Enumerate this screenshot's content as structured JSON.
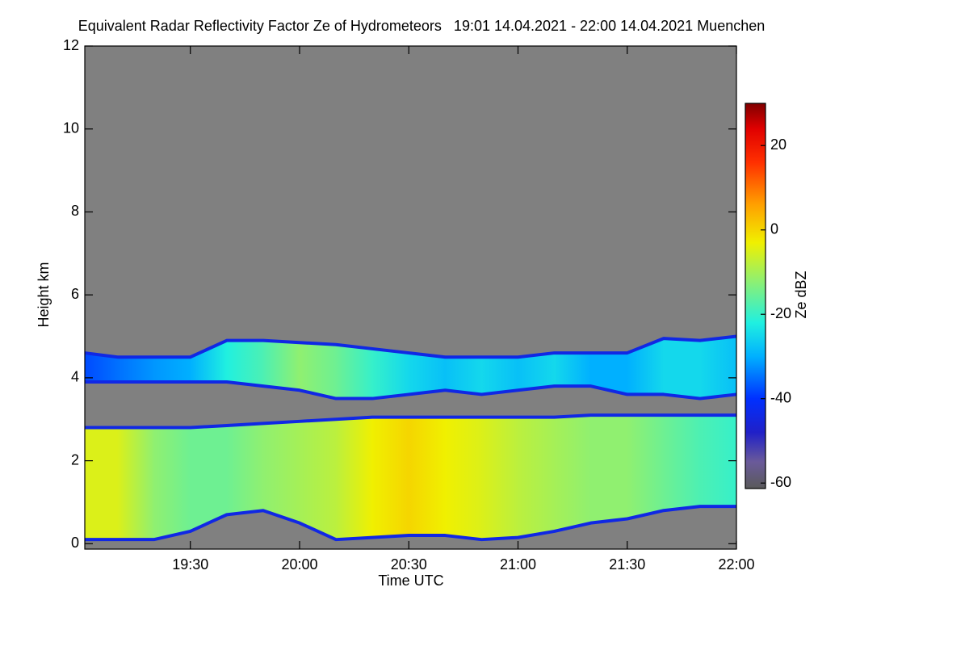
{
  "chart_data": {
    "type": "heatmap",
    "title": "Equivalent Radar Reflectivity Factor Ze of Hydrometeors   19:01 14.04.2021 - 22:00 14.04.2021 Muenchen",
    "xlabel": "Time UTC",
    "ylabel": "Height km",
    "x": [
      "19:01",
      "19:10",
      "19:20",
      "19:30",
      "19:40",
      "19:50",
      "20:00",
      "20:10",
      "20:20",
      "20:30",
      "20:40",
      "20:50",
      "21:00",
      "21:10",
      "21:20",
      "21:30",
      "21:40",
      "21:50",
      "22:00"
    ],
    "xlim": [
      "19:01",
      "22:00"
    ],
    "xticks": [
      "19:30",
      "20:00",
      "20:30",
      "21:00",
      "21:30",
      "22:00"
    ],
    "ylim": [
      -0.13,
      12.0
    ],
    "yticks": [
      0,
      2,
      4,
      6,
      8,
      10,
      12
    ],
    "background": "#808080",
    "layers": [
      {
        "top": [
          4.6,
          4.5,
          4.5,
          4.5,
          4.9,
          4.9,
          4.85,
          4.8,
          4.7,
          4.6,
          4.5,
          4.5,
          4.5,
          4.6,
          4.6,
          4.6,
          4.95,
          4.9,
          5.0
        ],
        "base": [
          3.9,
          3.9,
          3.9,
          3.9,
          3.9,
          3.8,
          3.7,
          3.5,
          3.5,
          3.6,
          3.7,
          3.6,
          3.7,
          3.8,
          3.8,
          3.6,
          3.6,
          3.5,
          3.6
        ],
        "ze": [
          -38,
          -35,
          -32,
          -30,
          -22,
          -18,
          -12,
          -15,
          -20,
          -25,
          -28,
          -25,
          -28,
          -25,
          -30,
          -30,
          -25,
          -25,
          -28
        ]
      },
      {
        "top": [
          2.8,
          2.8,
          2.8,
          2.8,
          2.85,
          2.9,
          2.95,
          3.0,
          3.05,
          3.05,
          3.05,
          3.05,
          3.05,
          3.05,
          3.1,
          3.1,
          3.1,
          3.1,
          3.1
        ],
        "base": [
          0.1,
          0.1,
          0.1,
          0.3,
          0.7,
          0.8,
          0.5,
          0.1,
          0.15,
          0.2,
          0.2,
          0.1,
          0.15,
          0.3,
          0.5,
          0.6,
          0.8,
          0.9,
          0.9
        ],
        "ze": [
          -5,
          -5,
          -12,
          -15,
          -15,
          -12,
          -10,
          -8,
          -3,
          0,
          -3,
          -5,
          -8,
          -10,
          -12,
          -12,
          -15,
          -18,
          -20
        ]
      }
    ],
    "colorbar": {
      "label": "Ze dBZ",
      "zlim": [
        -61.3,
        30
      ],
      "ticks": [
        -60,
        -40,
        -20,
        0,
        20
      ],
      "colorscale": [
        {
          "value": -61.3,
          "color": "#5a5a5a"
        },
        {
          "value": -55,
          "color": "#6a5a9a"
        },
        {
          "value": -48,
          "color": "#2020c8"
        },
        {
          "value": -40,
          "color": "#0030ff"
        },
        {
          "value": -30,
          "color": "#00b0ff"
        },
        {
          "value": -22,
          "color": "#20f0e0"
        },
        {
          "value": -12,
          "color": "#90f070"
        },
        {
          "value": -3,
          "color": "#f0f000"
        },
        {
          "value": 6,
          "color": "#ffa000"
        },
        {
          "value": 16,
          "color": "#ff3000"
        },
        {
          "value": 24,
          "color": "#e00000"
        },
        {
          "value": 30,
          "color": "#800000"
        }
      ]
    }
  }
}
